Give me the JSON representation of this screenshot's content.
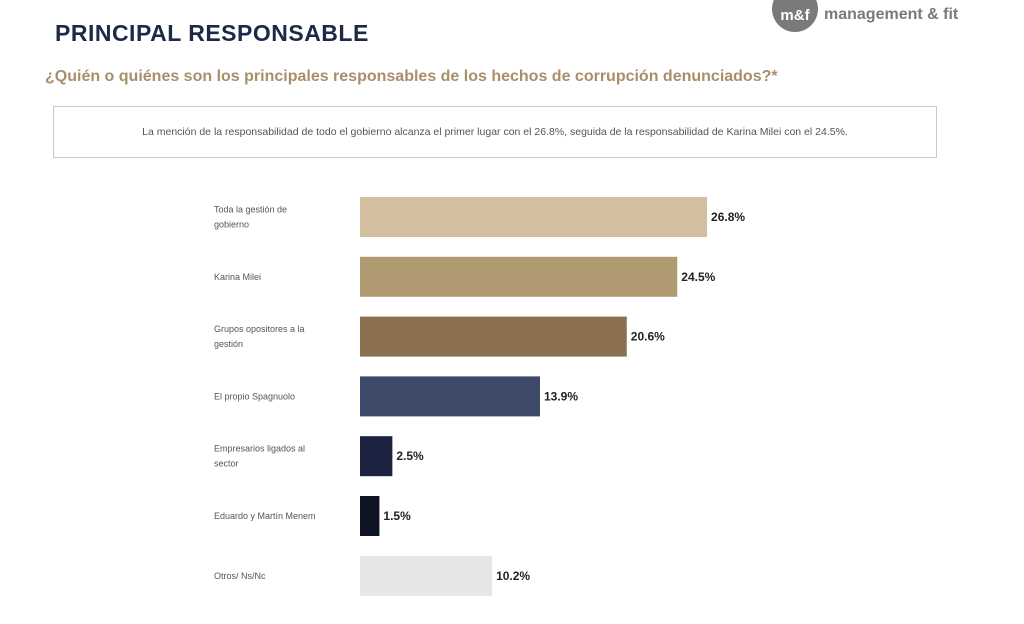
{
  "header": {
    "title": "PRINCIPAL RESPONSABLE",
    "logo_mark": "m&f",
    "logo_text": "management & fit"
  },
  "question": "¿Quién o quiénes son los principales responsables de los hechos de corrupción denunciados?*",
  "summary": "La mención de la responsabilidad de todo el gobierno alcanza el primer lugar con el 26.8%, seguida de la responsabilidad de Karina Milei con el 24.5%.",
  "chart_data": {
    "type": "bar",
    "orientation": "horizontal",
    "title": "",
    "xlabel": "",
    "ylabel": "",
    "xlim": [
      0,
      30
    ],
    "grid": false,
    "categories": [
      "Toda la gestión de gobierno",
      "Karina Milei",
      "Grupos opositores a la gestión",
      "El propio Spagnuolo",
      "Empresarios ligados al sector",
      "Eduardo y Martín Menem",
      "Otros/ Ns/Nc"
    ],
    "values": [
      26.8,
      24.5,
      20.6,
      13.9,
      2.5,
      1.5,
      10.2
    ],
    "value_labels": [
      "26.8%",
      "24.5%",
      "20.6%",
      "13.9%",
      "2.5%",
      "1.5%",
      "10.2%"
    ],
    "colors": [
      "#d3bf9f",
      "#b09a72",
      "#8b7150",
      "#3f4a6b",
      "#1c2340",
      "#0f1424",
      "#e6e6e6"
    ]
  }
}
